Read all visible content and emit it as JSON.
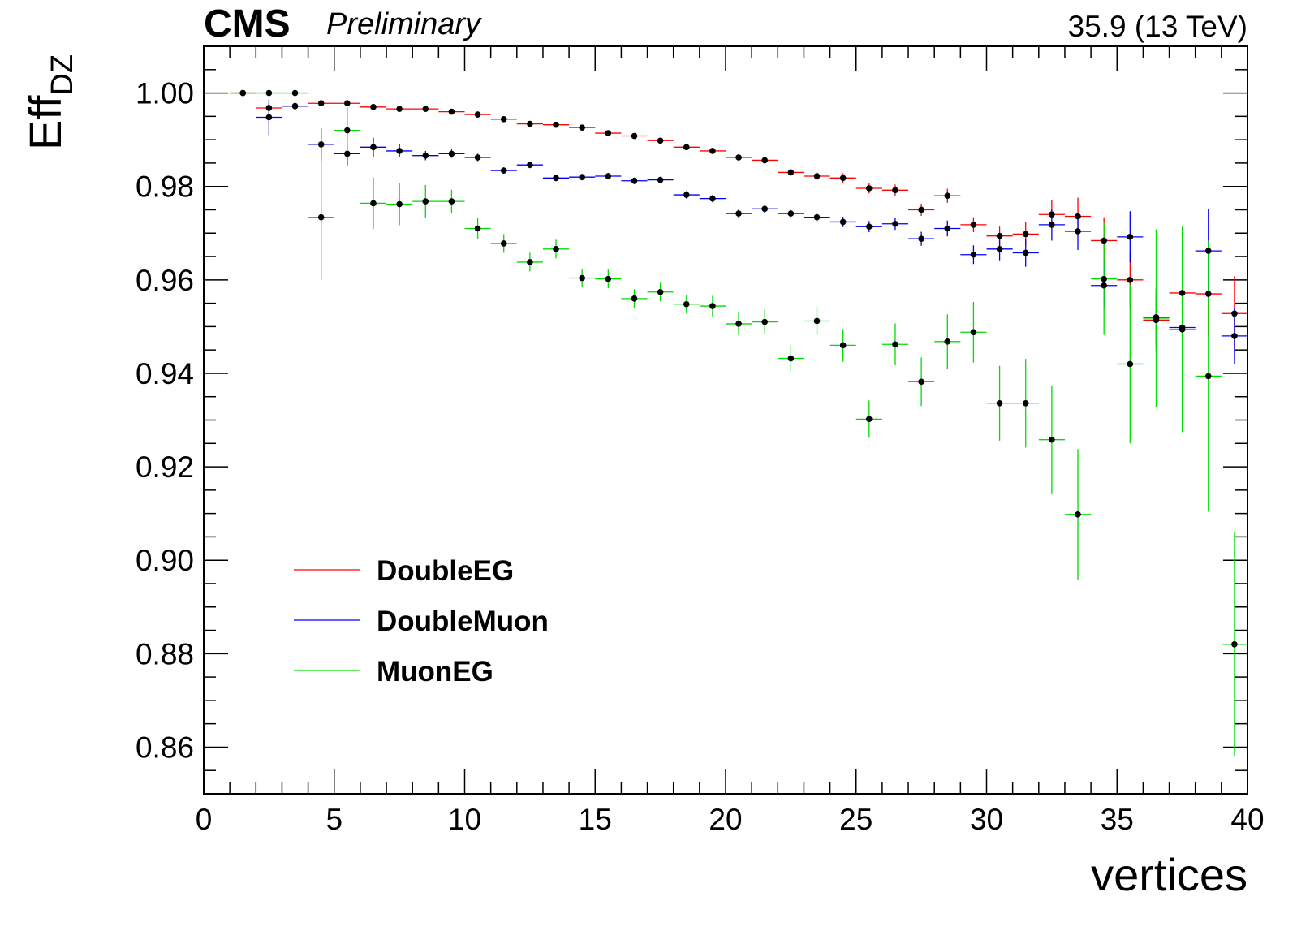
{
  "header": {
    "experiment": "CMS",
    "status": "Preliminary",
    "lumi": "35.9 (13 TeV)"
  },
  "chart_data": {
    "type": "scatter",
    "style": "points with error bars",
    "xlabel": "vertices",
    "ylabel_main": "Eff",
    "ylabel_sub": "DZ",
    "xlim": [
      0,
      40
    ],
    "ylim": [
      0.85,
      1.01
    ],
    "x_ticks": [
      0,
      5,
      10,
      15,
      20,
      25,
      30,
      35,
      40
    ],
    "y_ticks": [
      0.86,
      0.88,
      0.9,
      0.92,
      0.94,
      0.96,
      0.98,
      1.0
    ],
    "y_tick_labels": [
      "0.86",
      "0.88",
      "0.90",
      "0.92",
      "0.94",
      "0.96",
      "0.98",
      "1.00"
    ],
    "x_tick_labels": [
      "0",
      "5",
      "10",
      "15",
      "20",
      "25",
      "30",
      "35",
      "40"
    ],
    "grid": false,
    "legend_position": "bottom-left",
    "series": [
      {
        "name": "DoubleEG",
        "color": "#ff0000",
        "x": [
          1.5,
          2.5,
          3.5,
          4.5,
          5.5,
          6.5,
          7.5,
          8.5,
          9.5,
          10.5,
          11.5,
          12.5,
          13.5,
          14.5,
          15.5,
          16.5,
          17.5,
          18.5,
          19.5,
          20.5,
          21.5,
          22.5,
          23.5,
          24.5,
          25.5,
          26.5,
          27.5,
          28.5,
          29.5,
          30.5,
          31.5,
          32.5,
          33.5,
          34.5,
          35.5,
          36.5,
          37.5,
          38.5,
          39.5
        ],
        "y": [
          1.0,
          0.9968,
          0.9972,
          0.9978,
          0.9978,
          0.997,
          0.9966,
          0.9966,
          0.996,
          0.9954,
          0.9944,
          0.9934,
          0.9932,
          0.9926,
          0.9914,
          0.9908,
          0.9898,
          0.9884,
          0.9876,
          0.9862,
          0.9856,
          0.983,
          0.9822,
          0.9818,
          0.9796,
          0.9792,
          0.975,
          0.978,
          0.9718,
          0.9694,
          0.9698,
          0.974,
          0.9736,
          0.9684,
          0.96,
          0.9514,
          0.9572,
          0.957,
          0.9528
        ],
        "yerr": [
          0.0,
          0.001,
          0.0006,
          0.0005,
          0.0004,
          0.0004,
          0.0004,
          0.0004,
          0.0004,
          0.0004,
          0.0004,
          0.0005,
          0.0005,
          0.0005,
          0.0005,
          0.0005,
          0.0006,
          0.0006,
          0.0006,
          0.0007,
          0.0008,
          0.0008,
          0.0009,
          0.001,
          0.0011,
          0.0012,
          0.0013,
          0.0015,
          0.0016,
          0.002,
          0.0025,
          0.003,
          0.004,
          0.005,
          0.006,
          0.007,
          0.008,
          0.009,
          0.008
        ]
      },
      {
        "name": "DoubleMuon",
        "color": "#0000ff",
        "x": [
          2.5,
          3.5,
          4.5,
          5.5,
          6.5,
          7.5,
          8.5,
          9.5,
          10.5,
          11.5,
          12.5,
          13.5,
          14.5,
          15.5,
          16.5,
          17.5,
          18.5,
          19.5,
          20.5,
          21.5,
          22.5,
          23.5,
          24.5,
          25.5,
          26.5,
          27.5,
          28.5,
          29.5,
          30.5,
          31.5,
          32.5,
          33.5,
          34.5,
          35.5,
          36.5,
          37.5,
          38.5,
          39.5
        ],
        "y": [
          0.9948,
          0.9972,
          0.989,
          0.987,
          0.9884,
          0.9876,
          0.9866,
          0.987,
          0.9862,
          0.9834,
          0.9846,
          0.9818,
          0.982,
          0.9822,
          0.9812,
          0.9814,
          0.9782,
          0.9774,
          0.9742,
          0.9752,
          0.9742,
          0.9734,
          0.9724,
          0.9714,
          0.972,
          0.9688,
          0.971,
          0.9654,
          0.9666,
          0.9658,
          0.9718,
          0.9704,
          0.9588,
          0.9692,
          0.952,
          0.9498,
          0.9662,
          0.948
        ],
        "yerr": [
          0.0038,
          0.0008,
          0.0035,
          0.0025,
          0.002,
          0.0014,
          0.001,
          0.0009,
          0.0008,
          0.0007,
          0.0007,
          0.0007,
          0.0007,
          0.0007,
          0.0007,
          0.0007,
          0.0008,
          0.0008,
          0.0009,
          0.0009,
          0.001,
          0.001,
          0.0011,
          0.0012,
          0.0013,
          0.0015,
          0.0017,
          0.002,
          0.0024,
          0.003,
          0.0034,
          0.004,
          0.005,
          0.0055,
          0.006,
          0.0065,
          0.009,
          0.006
        ]
      },
      {
        "name": "MuonEG",
        "color": "#00dd00",
        "x": [
          1.5,
          2.5,
          3.5,
          4.5,
          5.5,
          6.5,
          7.5,
          8.5,
          9.5,
          10.5,
          11.5,
          12.5,
          13.5,
          14.5,
          15.5,
          16.5,
          17.5,
          18.5,
          19.5,
          20.5,
          21.5,
          22.5,
          23.5,
          24.5,
          25.5,
          26.5,
          27.5,
          28.5,
          29.5,
          30.5,
          31.5,
          32.5,
          33.5,
          34.5,
          35.5,
          36.5,
          37.5,
          38.5,
          39.5
        ],
        "y": [
          1.0,
          1.0,
          1.0,
          0.9734,
          0.992,
          0.9764,
          0.9762,
          0.9768,
          0.9768,
          0.971,
          0.9678,
          0.9638,
          0.9666,
          0.9604,
          0.9602,
          0.956,
          0.9574,
          0.9548,
          0.9544,
          0.9506,
          0.951,
          0.9432,
          0.9512,
          0.946,
          0.9302,
          0.9462,
          0.9382,
          0.9468,
          0.9488,
          0.9336,
          0.9336,
          0.9258,
          0.9098,
          0.9602,
          0.942,
          0.9518,
          0.9494,
          0.9394,
          0.882
        ],
        "yerr": [
          0.0,
          0.0,
          0.0,
          0.0135,
          0.005,
          0.0055,
          0.0045,
          0.0035,
          0.0025,
          0.0022,
          0.002,
          0.002,
          0.002,
          0.002,
          0.002,
          0.002,
          0.002,
          0.002,
          0.0022,
          0.0024,
          0.0026,
          0.0028,
          0.003,
          0.0035,
          0.004,
          0.0045,
          0.0052,
          0.0058,
          0.0065,
          0.008,
          0.0095,
          0.0115,
          0.014,
          0.012,
          0.017,
          0.019,
          0.022,
          0.029,
          0.024
        ]
      }
    ]
  }
}
